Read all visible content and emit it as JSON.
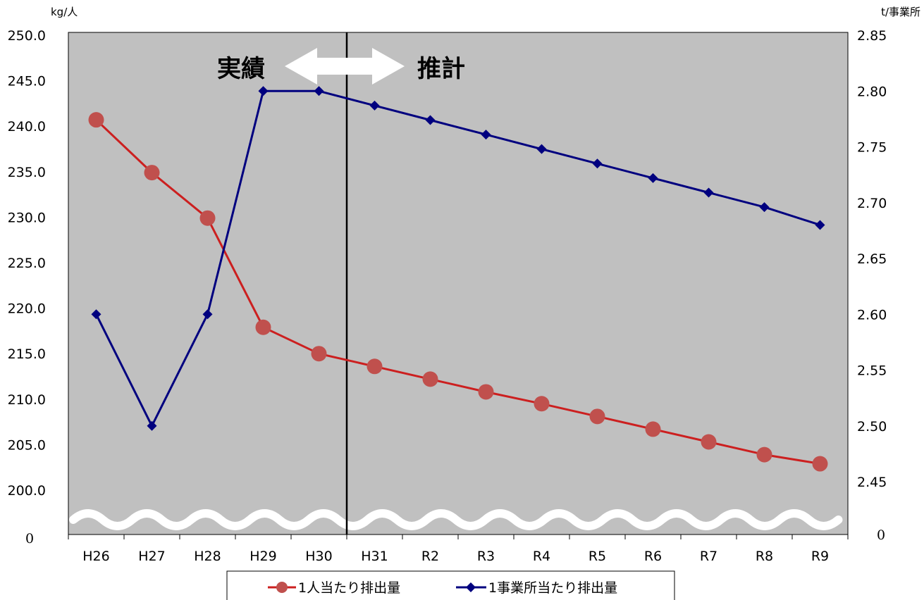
{
  "chart_data": {
    "type": "line",
    "categories": [
      "H26",
      "H27",
      "H28",
      "H29",
      "H30",
      "H31",
      "R2",
      "R3",
      "R4",
      "R5",
      "R6",
      "R7",
      "R8",
      "R9"
    ],
    "y_left": {
      "unit": "kg/人",
      "ylim": [
        200.0,
        250.0
      ],
      "ticks": [
        "250.0",
        "245.0",
        "240.0",
        "235.0",
        "230.0",
        "225.0",
        "220.0",
        "215.0",
        "210.0",
        "205.0",
        "200.0"
      ],
      "zero_label": "0"
    },
    "y_right": {
      "unit": "t/事業所",
      "ylim": [
        2.45,
        2.85
      ],
      "ticks": [
        "2.85",
        "2.80",
        "2.75",
        "2.70",
        "2.65",
        "2.60",
        "2.55",
        "2.50",
        "2.45"
      ],
      "zero_label": "0"
    },
    "series": [
      {
        "name": "1人当たり排出量",
        "axis": "left",
        "color": "#cc1f1f",
        "marker_color": "#c0504d",
        "marker": "circle",
        "values": [
          240.7,
          234.9,
          229.9,
          217.9,
          215.0,
          213.6,
          212.2,
          210.8,
          209.5,
          208.1,
          206.7,
          205.3,
          203.9,
          202.9
        ]
      },
      {
        "name": "1事業所当たり排出量",
        "axis": "right",
        "color": "#00007f",
        "marker": "diamond",
        "values": [
          2.6,
          2.5,
          2.6,
          2.8,
          2.8,
          2.787,
          2.774,
          2.761,
          2.748,
          2.735,
          2.722,
          2.709,
          2.696,
          2.68
        ]
      }
    ],
    "annotations": {
      "actual_label": "実績",
      "forecast_label": "推計",
      "divider_between": [
        "H30",
        "H31"
      ]
    },
    "colors": {
      "plot_background": "#c0c0c0",
      "divider": "#000000",
      "axis_break": "#ffffff"
    },
    "grid": false,
    "legend_position": "bottom"
  }
}
